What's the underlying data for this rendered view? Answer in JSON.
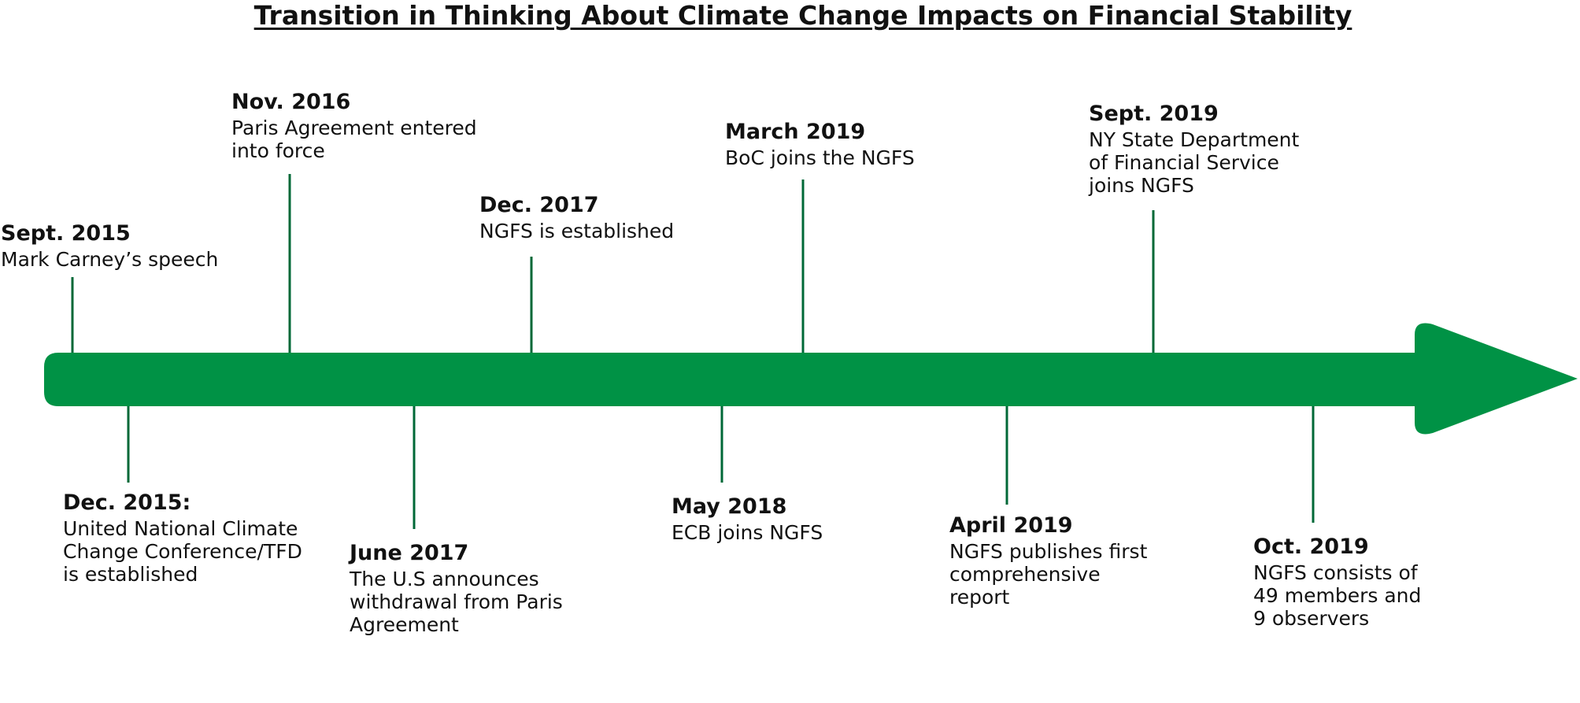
{
  "title": "Transition in Thinking About Climate Change Impacts on Financial Stability",
  "colors": {
    "arrow": "#009245",
    "connector": "#006837",
    "text": "#111111"
  },
  "events": [
    {
      "date": "Sept. 2015",
      "description": "Mark Carney’s speech"
    },
    {
      "date": "Dec. 2015:",
      "description": "United National Climate\nChange Conference/TFD\nis established"
    },
    {
      "date": "Nov. 2016",
      "description": "Paris Agreement entered\ninto force"
    },
    {
      "date": "June 2017",
      "description": "The U.S announces\nwithdrawal from Paris\nAgreement"
    },
    {
      "date": "Dec. 2017",
      "description": "NGFS is established"
    },
    {
      "date": "May 2018",
      "description": "ECB joins NGFS"
    },
    {
      "date": "March 2019",
      "description": "BoC joins the NGFS"
    },
    {
      "date": "April 2019",
      "description": "NGFS publishes first\ncomprehensive\nreport"
    },
    {
      "date": "Sept. 2019",
      "description": "NY State Department\nof Financial Service\njoins NGFS"
    },
    {
      "date": "Oct. 2019",
      "description": "NGFS consists of\n49 members and\n9 observers"
    }
  ]
}
